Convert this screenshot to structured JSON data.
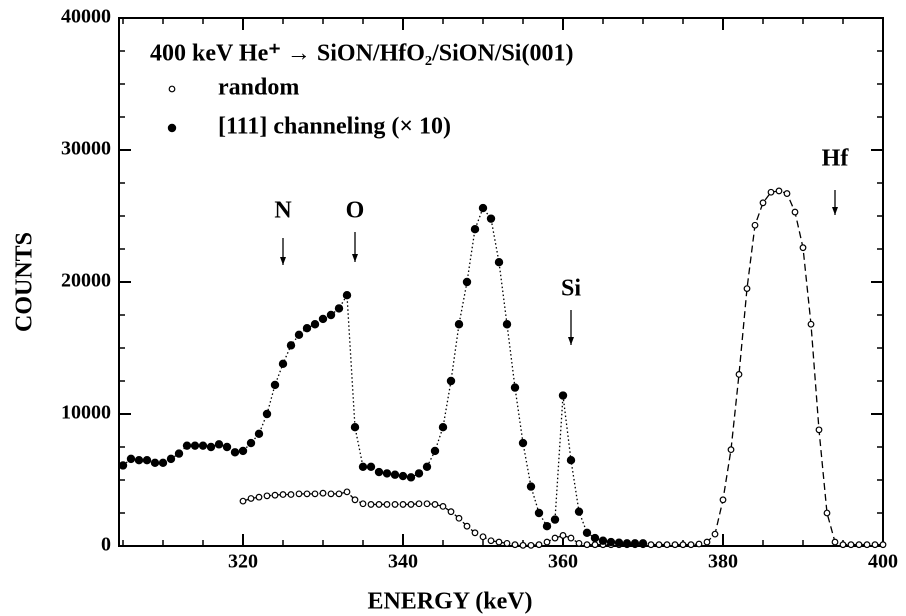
{
  "chart_data": {
    "type": "scatter",
    "title": "400 keV He⁺ → SiON/HfO₂/SiON/Si(001)",
    "xlabel": "ENERGY (keV)",
    "ylabel": "COUNTS",
    "xlim": [
      304.5,
      400
    ],
    "ylim": [
      0,
      40000
    ],
    "xticks": [
      320,
      340,
      360,
      380,
      400
    ],
    "yticks": [
      0,
      10000,
      20000,
      30000,
      40000
    ],
    "xminorticks": [
      305,
      310,
      315,
      325,
      330,
      335,
      345,
      350,
      355,
      365,
      370,
      375,
      385,
      390,
      395
    ],
    "yminorticks": [
      2500,
      5000,
      7500,
      12500,
      15000,
      17500,
      22500,
      25000,
      27500,
      32500,
      35000,
      37500
    ],
    "series": [
      {
        "name": "random",
        "color": "#000000",
        "marker": "open",
        "linestyle": "dashed",
        "x": [
          320,
          321,
          322,
          323,
          324,
          325,
          326,
          327,
          328,
          329,
          330,
          331,
          332,
          333,
          334,
          335,
          336,
          337,
          338,
          339,
          340,
          341,
          342,
          343,
          344,
          345,
          346,
          347,
          348,
          349,
          350,
          351,
          352,
          353,
          354,
          355,
          356,
          357,
          358,
          359,
          360,
          361,
          362,
          363,
          364,
          365,
          366,
          367,
          368,
          369,
          370,
          371,
          372,
          373,
          374,
          375,
          376,
          377,
          378,
          379,
          380,
          381,
          382,
          383,
          384,
          385,
          386,
          387,
          388,
          389,
          390,
          391,
          392,
          393,
          394,
          395,
          396,
          397,
          398,
          399,
          400
        ],
        "values": [
          3400,
          3600,
          3700,
          3800,
          3850,
          3900,
          3900,
          3950,
          3950,
          3950,
          4000,
          3950,
          3950,
          4100,
          3500,
          3200,
          3150,
          3150,
          3150,
          3150,
          3150,
          3150,
          3200,
          3200,
          3150,
          3000,
          2600,
          2100,
          1500,
          1000,
          700,
          400,
          300,
          200,
          100,
          50,
          50,
          100,
          300,
          600,
          800,
          600,
          200,
          100,
          100,
          100,
          100,
          100,
          100,
          100,
          100,
          100,
          100,
          100,
          100,
          100,
          100,
          150,
          300,
          900,
          3500,
          7300,
          13000,
          19500,
          24300,
          26000,
          26800,
          26900,
          26700,
          25300,
          22600,
          16800,
          8800,
          2500,
          300,
          100,
          100,
          100,
          100,
          100,
          100
        ]
      },
      {
        "name": "[111] channeling (× 10)",
        "color": "#000000",
        "marker": "filled",
        "linestyle": "dotted",
        "x": [
          305,
          306,
          307,
          308,
          309,
          310,
          311,
          312,
          313,
          314,
          315,
          316,
          317,
          318,
          319,
          320,
          321,
          322,
          323,
          324,
          325,
          326,
          327,
          328,
          329,
          330,
          331,
          332,
          333,
          334,
          335,
          336,
          337,
          338,
          339,
          340,
          341,
          342,
          343,
          344,
          345,
          346,
          347,
          348,
          349,
          350,
          351,
          352,
          353,
          354,
          355,
          356,
          357,
          358,
          359,
          360,
          361,
          362,
          363,
          364,
          365,
          366,
          367,
          368,
          369,
          370
        ],
        "values": [
          6100,
          6600,
          6500,
          6500,
          6300,
          6300,
          6600,
          7000,
          7600,
          7600,
          7600,
          7500,
          7700,
          7500,
          7100,
          7200,
          7800,
          8500,
          10000,
          12200,
          13800,
          15200,
          16000,
          16500,
          16800,
          17200,
          17500,
          18000,
          19000,
          9000,
          6000,
          6000,
          5600,
          5500,
          5400,
          5300,
          5200,
          5500,
          6000,
          7200,
          9000,
          12500,
          16800,
          20000,
          24000,
          25600,
          24800,
          21500,
          16800,
          12000,
          7800,
          4500,
          2500,
          1500,
          2000,
          11400,
          6500,
          2600,
          1000,
          600,
          400,
          300,
          250,
          200,
          200,
          200
        ]
      }
    ],
    "annotations": [
      {
        "text": "N",
        "x": 325
      },
      {
        "text": "O",
        "x": 334
      },
      {
        "text": "Si",
        "x": 361
      },
      {
        "text": "Hf",
        "x": 394
      }
    ]
  }
}
